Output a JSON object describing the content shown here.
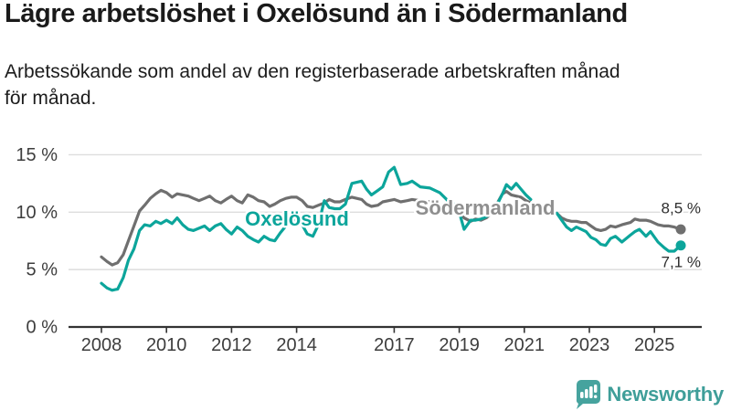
{
  "header": {
    "title": "Lägre arbetslöshet i Oxelösund än i Södermanland",
    "subtitle_line1": "Arbetssökande som andel av den registerbaserade arbetskraften månad",
    "subtitle_line2": "för månad."
  },
  "footer": {
    "brand": "Newsworthy"
  },
  "colors": {
    "oxelosund_teal": "#0ca59b",
    "sodermanland_gray": "#6f6f6f",
    "sodermanland_label_gray": "#8f8f8f",
    "grid_gray": "#dddddd",
    "axis_dark": "#333333",
    "logo_teal": "#3f9e99"
  },
  "chart_data": {
    "type": "line",
    "title": "Lägre arbetslöshet i Oxelösund än i Södermanland",
    "subtitle": "Arbetssökande som andel av den registerbaserade arbetskraften månad för månad.",
    "unit": "%",
    "grid": true,
    "legend_position": "inline-labels",
    "x_range": [
      2007.9,
      2026.4
    ],
    "y_axis": {
      "range": [
        0,
        15.8
      ],
      "ticks": [
        {
          "v": 0,
          "label": "0 %"
        },
        {
          "v": 5,
          "label": "5 %"
        },
        {
          "v": 10,
          "label": "10 %"
        },
        {
          "v": 15,
          "label": "15 %"
        }
      ]
    },
    "x_axis": {
      "ticks": [
        {
          "t": 2008,
          "label": "2008"
        },
        {
          "t": 2010,
          "label": "2010"
        },
        {
          "t": 2012,
          "label": "2012"
        },
        {
          "t": 2014,
          "label": "2014"
        },
        {
          "t": 2017,
          "label": "2017"
        },
        {
          "t": 2019,
          "label": "2019"
        },
        {
          "t": 2021,
          "label": "2021"
        },
        {
          "t": 2023,
          "label": "2023"
        },
        {
          "t": 2025,
          "label": "2025"
        }
      ]
    },
    "gap_note": "no data published between spring 2021 and end of 2021",
    "series": [
      {
        "id": "sodermanland",
        "name": "Södermanland",
        "color": "#6f6f6f",
        "label_color": "#8f8f8f",
        "name_label": {
          "t": 2019.8,
          "v": 9.78
        },
        "end_value": 8.5,
        "end_label": "8,5 %",
        "end_label_position": "above",
        "points": [
          [
            2008.0,
            6.1
          ],
          [
            2008.17,
            5.7
          ],
          [
            2008.33,
            5.4
          ],
          [
            2008.5,
            5.6
          ],
          [
            2008.67,
            6.3
          ],
          [
            2008.83,
            7.5
          ],
          [
            2009.0,
            8.8
          ],
          [
            2009.17,
            10.1
          ],
          [
            2009.33,
            10.6
          ],
          [
            2009.5,
            11.2
          ],
          [
            2009.67,
            11.6
          ],
          [
            2009.83,
            11.9
          ],
          [
            2010.0,
            11.7
          ],
          [
            2010.17,
            11.3
          ],
          [
            2010.33,
            11.6
          ],
          [
            2010.5,
            11.5
          ],
          [
            2010.67,
            11.4
          ],
          [
            2010.83,
            11.2
          ],
          [
            2011.0,
            11.0
          ],
          [
            2011.17,
            11.2
          ],
          [
            2011.33,
            11.4
          ],
          [
            2011.5,
            11.0
          ],
          [
            2011.67,
            10.8
          ],
          [
            2011.83,
            11.1
          ],
          [
            2012.0,
            11.4
          ],
          [
            2012.17,
            11.0
          ],
          [
            2012.33,
            10.8
          ],
          [
            2012.5,
            11.5
          ],
          [
            2012.67,
            11.3
          ],
          [
            2012.83,
            11.0
          ],
          [
            2013.0,
            10.9
          ],
          [
            2013.17,
            10.5
          ],
          [
            2013.33,
            10.7
          ],
          [
            2013.5,
            11.0
          ],
          [
            2013.67,
            11.2
          ],
          [
            2013.83,
            11.3
          ],
          [
            2014.0,
            11.3
          ],
          [
            2014.17,
            11.0
          ],
          [
            2014.33,
            10.5
          ],
          [
            2014.5,
            10.4
          ],
          [
            2014.67,
            10.6
          ],
          [
            2014.85,
            10.8
          ],
          [
            2015.0,
            11.1
          ],
          [
            2015.17,
            10.9
          ],
          [
            2015.33,
            10.9
          ],
          [
            2015.5,
            11.1
          ],
          [
            2015.7,
            11.3
          ],
          [
            2015.85,
            11.2
          ],
          [
            2016.0,
            11.1
          ],
          [
            2016.15,
            10.7
          ],
          [
            2016.3,
            10.5
          ],
          [
            2016.5,
            10.6
          ],
          [
            2016.65,
            10.9
          ],
          [
            2016.83,
            11.0
          ],
          [
            2017.0,
            11.1
          ],
          [
            2017.2,
            10.9
          ],
          [
            2017.4,
            11.0
          ],
          [
            2017.55,
            11.1
          ],
          [
            2017.8,
            11.0
          ],
          [
            2018.1,
            10.9
          ],
          [
            2018.4,
            10.5
          ],
          [
            2018.65,
            10.3
          ],
          [
            2018.9,
            10.2
          ],
          [
            2019.0,
            10.1
          ],
          [
            2019.15,
            9.5
          ],
          [
            2019.35,
            9.2
          ],
          [
            2019.5,
            9.4
          ],
          [
            2019.67,
            9.3
          ],
          [
            2019.83,
            9.5
          ],
          [
            2020.0,
            9.9
          ],
          [
            2020.17,
            10.8
          ],
          [
            2020.33,
            11.6
          ],
          [
            2020.45,
            11.8
          ],
          [
            2020.6,
            11.5
          ],
          [
            2020.75,
            11.4
          ],
          [
            2020.9,
            11.3
          ],
          [
            2021.05,
            11.0
          ],
          [
            2021.2,
            10.8
          ],
          [
            2021.5,
            null
          ],
          [
            2022.0,
            9.9
          ],
          [
            2022.15,
            9.5
          ],
          [
            2022.3,
            9.3
          ],
          [
            2022.45,
            9.2
          ],
          [
            2022.6,
            9.2
          ],
          [
            2022.75,
            9.1
          ],
          [
            2022.9,
            9.1
          ],
          [
            2023.05,
            8.8
          ],
          [
            2023.2,
            8.5
          ],
          [
            2023.35,
            8.4
          ],
          [
            2023.5,
            8.5
          ],
          [
            2023.65,
            8.8
          ],
          [
            2023.8,
            8.7
          ],
          [
            2024.0,
            8.9
          ],
          [
            2024.26,
            9.1
          ],
          [
            2024.4,
            9.4
          ],
          [
            2024.54,
            9.3
          ],
          [
            2024.74,
            9.3
          ],
          [
            2024.88,
            9.2
          ],
          [
            2025.11,
            8.9
          ],
          [
            2025.3,
            8.8
          ],
          [
            2025.44,
            8.8
          ],
          [
            2025.61,
            8.7
          ],
          [
            2025.81,
            8.5
          ]
        ]
      },
      {
        "id": "oxelosund",
        "name": "Oxelösund",
        "color": "#0ca59b",
        "label_color": "#0ca59b",
        "name_label": {
          "t": 2014.01,
          "v": 8.83
        },
        "end_value": 7.1,
        "end_label": "7,1 %",
        "end_label_position": "below",
        "points": [
          [
            2008.0,
            3.8
          ],
          [
            2008.17,
            3.4
          ],
          [
            2008.33,
            3.2
          ],
          [
            2008.5,
            3.3
          ],
          [
            2008.67,
            4.3
          ],
          [
            2008.83,
            5.8
          ],
          [
            2009.0,
            6.8
          ],
          [
            2009.17,
            8.4
          ],
          [
            2009.33,
            8.9
          ],
          [
            2009.5,
            8.8
          ],
          [
            2009.67,
            9.2
          ],
          [
            2009.83,
            9.0
          ],
          [
            2010.0,
            9.3
          ],
          [
            2010.17,
            9.0
          ],
          [
            2010.33,
            9.5
          ],
          [
            2010.5,
            8.9
          ],
          [
            2010.67,
            8.5
          ],
          [
            2010.83,
            8.4
          ],
          [
            2011.0,
            8.6
          ],
          [
            2011.17,
            8.8
          ],
          [
            2011.33,
            8.4
          ],
          [
            2011.5,
            8.8
          ],
          [
            2011.67,
            9.0
          ],
          [
            2011.83,
            8.5
          ],
          [
            2012.0,
            8.1
          ],
          [
            2012.17,
            8.7
          ],
          [
            2012.33,
            8.4
          ],
          [
            2012.5,
            7.9
          ],
          [
            2012.67,
            7.6
          ],
          [
            2012.83,
            7.4
          ],
          [
            2013.0,
            7.9
          ],
          [
            2013.17,
            7.6
          ],
          [
            2013.33,
            7.5
          ],
          [
            2013.5,
            8.2
          ],
          [
            2013.67,
            8.8
          ],
          [
            2013.83,
            9.2
          ],
          [
            2014.0,
            9.3
          ],
          [
            2014.17,
            8.9
          ],
          [
            2014.33,
            8.1
          ],
          [
            2014.5,
            7.9
          ],
          [
            2014.67,
            8.9
          ],
          [
            2014.85,
            11.0
          ],
          [
            2015.0,
            10.4
          ],
          [
            2015.17,
            10.3
          ],
          [
            2015.33,
            10.3
          ],
          [
            2015.5,
            10.7
          ],
          [
            2015.7,
            12.5
          ],
          [
            2015.85,
            12.6
          ],
          [
            2016.0,
            12.7
          ],
          [
            2016.15,
            12.0
          ],
          [
            2016.3,
            11.5
          ],
          [
            2016.5,
            11.9
          ],
          [
            2016.65,
            12.2
          ],
          [
            2016.83,
            13.5
          ],
          [
            2017.0,
            13.9
          ],
          [
            2017.2,
            12.4
          ],
          [
            2017.4,
            12.5
          ],
          [
            2017.55,
            12.7
          ],
          [
            2017.8,
            12.2
          ],
          [
            2018.1,
            12.1
          ],
          [
            2018.4,
            11.7
          ],
          [
            2018.65,
            11.0
          ],
          [
            2018.9,
            10.6
          ],
          [
            2019.0,
            10.0
          ],
          [
            2019.15,
            8.5
          ],
          [
            2019.35,
            9.3
          ],
          [
            2019.5,
            9.3
          ],
          [
            2019.67,
            9.4
          ],
          [
            2019.83,
            9.6
          ],
          [
            2020.0,
            9.9
          ],
          [
            2020.17,
            10.7
          ],
          [
            2020.33,
            11.6
          ],
          [
            2020.45,
            12.4
          ],
          [
            2020.6,
            12.0
          ],
          [
            2020.75,
            12.5
          ],
          [
            2020.9,
            12.0
          ],
          [
            2021.05,
            11.5
          ],
          [
            2021.2,
            11.1
          ],
          [
            2021.5,
            null
          ],
          [
            2022.0,
            9.9
          ],
          [
            2022.15,
            9.3
          ],
          [
            2022.3,
            8.7
          ],
          [
            2022.45,
            8.4
          ],
          [
            2022.6,
            8.7
          ],
          [
            2022.75,
            8.5
          ],
          [
            2022.9,
            8.3
          ],
          [
            2023.05,
            7.8
          ],
          [
            2023.2,
            7.6
          ],
          [
            2023.35,
            7.2
          ],
          [
            2023.5,
            7.1
          ],
          [
            2023.65,
            7.7
          ],
          [
            2023.8,
            7.9
          ],
          [
            2024.0,
            7.4
          ],
          [
            2024.26,
            8.0
          ],
          [
            2024.4,
            8.3
          ],
          [
            2024.54,
            8.5
          ],
          [
            2024.74,
            7.9
          ],
          [
            2024.88,
            8.3
          ],
          [
            2025.11,
            7.4
          ],
          [
            2025.3,
            6.9
          ],
          [
            2025.44,
            6.6
          ],
          [
            2025.61,
            6.6
          ],
          [
            2025.81,
            7.1
          ]
        ]
      }
    ]
  }
}
